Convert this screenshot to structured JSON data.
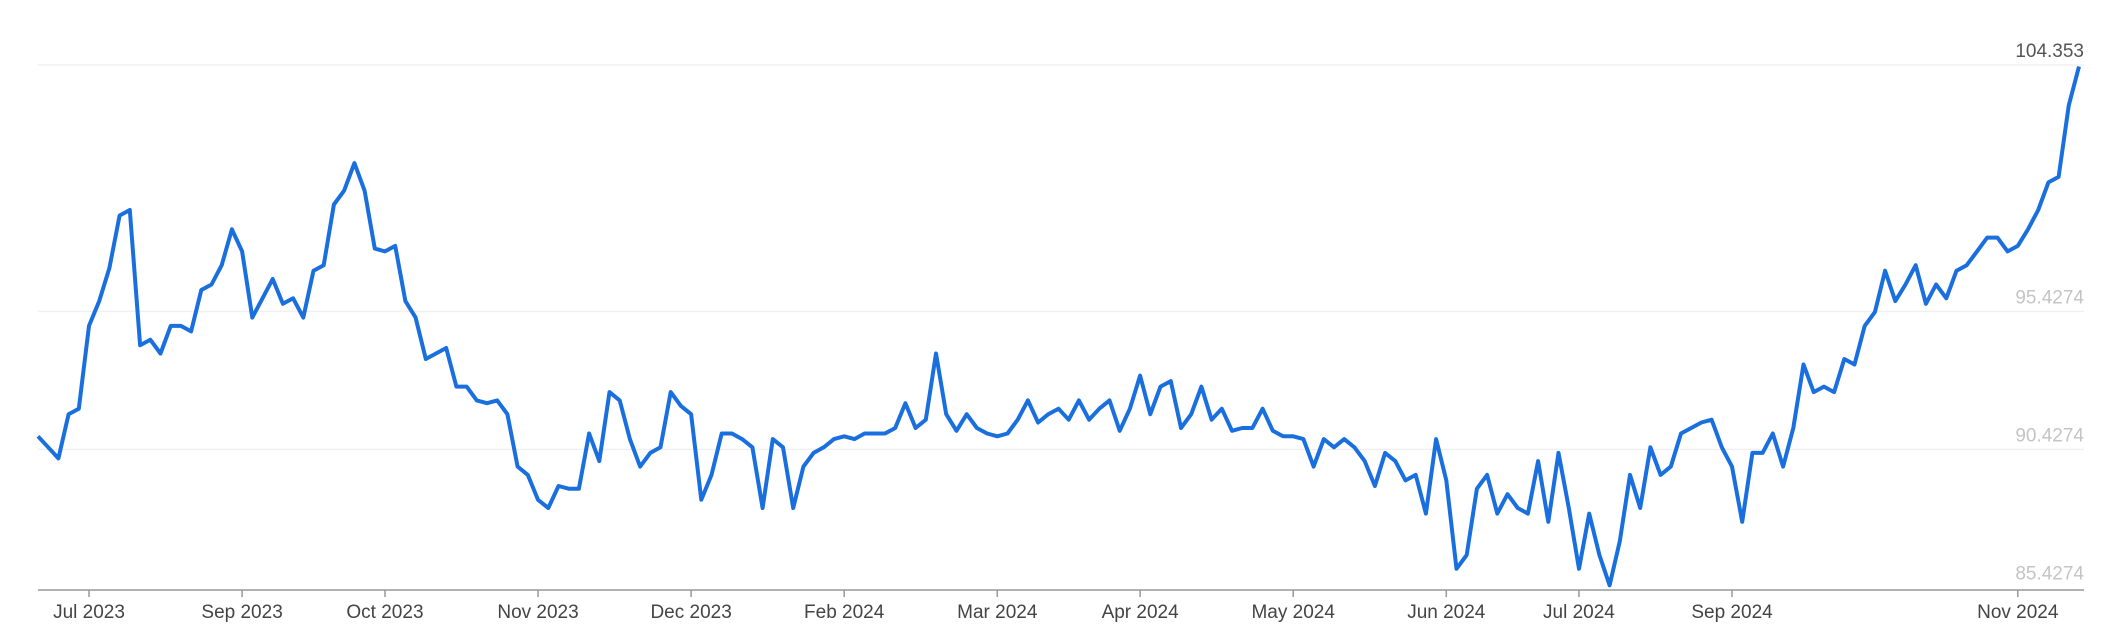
{
  "chart_data": {
    "type": "line",
    "categories": [
      null,
      null,
      null,
      null,
      null,
      "Jul 2023",
      null,
      null,
      null,
      null,
      null,
      null,
      null,
      null,
      null,
      null,
      null,
      null,
      null,
      null,
      "Sep 2023",
      null,
      null,
      null,
      null,
      null,
      null,
      null,
      null,
      null,
      null,
      null,
      null,
      null,
      "Oct 2023",
      null,
      null,
      null,
      null,
      null,
      null,
      null,
      null,
      null,
      null,
      null,
      null,
      null,
      null,
      "Nov 2023",
      null,
      null,
      null,
      null,
      null,
      null,
      null,
      null,
      null,
      null,
      null,
      null,
      null,
      null,
      "Dec 2023",
      null,
      null,
      null,
      null,
      null,
      null,
      null,
      null,
      null,
      null,
      null,
      null,
      null,
      null,
      "Feb 2024",
      null,
      null,
      null,
      null,
      null,
      null,
      null,
      null,
      null,
      null,
      null,
      null,
      null,
      null,
      "Mar 2024",
      null,
      null,
      null,
      null,
      null,
      null,
      null,
      null,
      null,
      null,
      null,
      null,
      null,
      "Apr 2024",
      null,
      null,
      null,
      null,
      null,
      null,
      null,
      null,
      null,
      null,
      null,
      null,
      null,
      null,
      "May 2024",
      null,
      null,
      null,
      null,
      null,
      null,
      null,
      null,
      null,
      null,
      null,
      null,
      null,
      null,
      "Jun 2024",
      null,
      null,
      null,
      null,
      null,
      null,
      null,
      null,
      null,
      null,
      null,
      null,
      "Jul 2024",
      null,
      null,
      null,
      null,
      null,
      null,
      null,
      null,
      null,
      null,
      null,
      null,
      null,
      null,
      "Sep 2024",
      null,
      null,
      null,
      null,
      null,
      null,
      null,
      null,
      null,
      null,
      null,
      null,
      null,
      null,
      null,
      null,
      null,
      null,
      null,
      null,
      null,
      null,
      null,
      null,
      null,
      null,
      null,
      "Nov 2024",
      null,
      null,
      null,
      null,
      null,
      null
    ],
    "series": [
      {
        "color": "#1a6fdf",
        "values": [
          90.9,
          90.5,
          90.1,
          91.7,
          91.9,
          94.9,
          95.8,
          97.0,
          98.9,
          99.1,
          94.2,
          94.4,
          93.9,
          94.9,
          94.9,
          94.7,
          96.2,
          96.4,
          97.1,
          98.4,
          97.6,
          95.2,
          95.9,
          96.6,
          95.7,
          95.9,
          95.2,
          96.9,
          97.1,
          99.3,
          99.8,
          100.8,
          99.8,
          97.7,
          97.6,
          97.8,
          95.8,
          95.2,
          93.7,
          93.9,
          94.1,
          92.7,
          92.7,
          92.2,
          92.1,
          92.2,
          91.7,
          89.8,
          89.5,
          88.6,
          88.3,
          89.1,
          89.0,
          89.0,
          91.0,
          90.0,
          92.5,
          92.2,
          90.8,
          89.8,
          90.3,
          90.5,
          92.5,
          92.0,
          91.7,
          88.6,
          89.5,
          91.0,
          91.0,
          90.8,
          90.5,
          88.3,
          90.8,
          90.5,
          88.3,
          89.8,
          90.3,
          90.5,
          90.8,
          90.9,
          90.8,
          91.0,
          91.0,
          91.0,
          91.2,
          92.1,
          91.2,
          91.5,
          93.9,
          91.7,
          91.1,
          91.7,
          91.2,
          91.0,
          90.9,
          91.0,
          91.5,
          92.2,
          91.4,
          91.7,
          91.9,
          91.5,
          92.2,
          91.5,
          91.9,
          92.2,
          91.1,
          91.9,
          93.1,
          91.7,
          92.7,
          92.9,
          91.2,
          91.7,
          92.7,
          91.5,
          91.9,
          91.1,
          91.2,
          91.2,
          91.9,
          91.1,
          90.9,
          90.9,
          90.8,
          89.8,
          90.8,
          90.5,
          90.8,
          90.5,
          90.0,
          89.1,
          90.3,
          90.0,
          89.3,
          89.5,
          88.1,
          90.8,
          89.3,
          86.1,
          86.6,
          89.0,
          89.5,
          88.1,
          88.8,
          88.3,
          88.1,
          90.0,
          87.8,
          90.3,
          88.3,
          86.1,
          88.1,
          86.6,
          85.5,
          87.1,
          89.5,
          88.3,
          90.5,
          89.5,
          89.8,
          91.0,
          91.2,
          91.4,
          91.5,
          90.5,
          89.8,
          87.8,
          90.3,
          90.3,
          91.0,
          89.8,
          91.2,
          93.5,
          92.5,
          92.7,
          92.5,
          93.7,
          93.5,
          94.9,
          95.4,
          96.9,
          95.8,
          96.4,
          97.1,
          95.7,
          96.4,
          95.9,
          96.9,
          97.1,
          97.6,
          98.1,
          98.1,
          97.6,
          97.8,
          98.4,
          99.1,
          100.1,
          100.3,
          102.9,
          104.3
        ]
      }
    ],
    "ylim": [
      85.33,
      104.5
    ],
    "yticks": [
      104.353,
      95.4274,
      90.4274,
      85.4274
    ],
    "grid": true
  }
}
